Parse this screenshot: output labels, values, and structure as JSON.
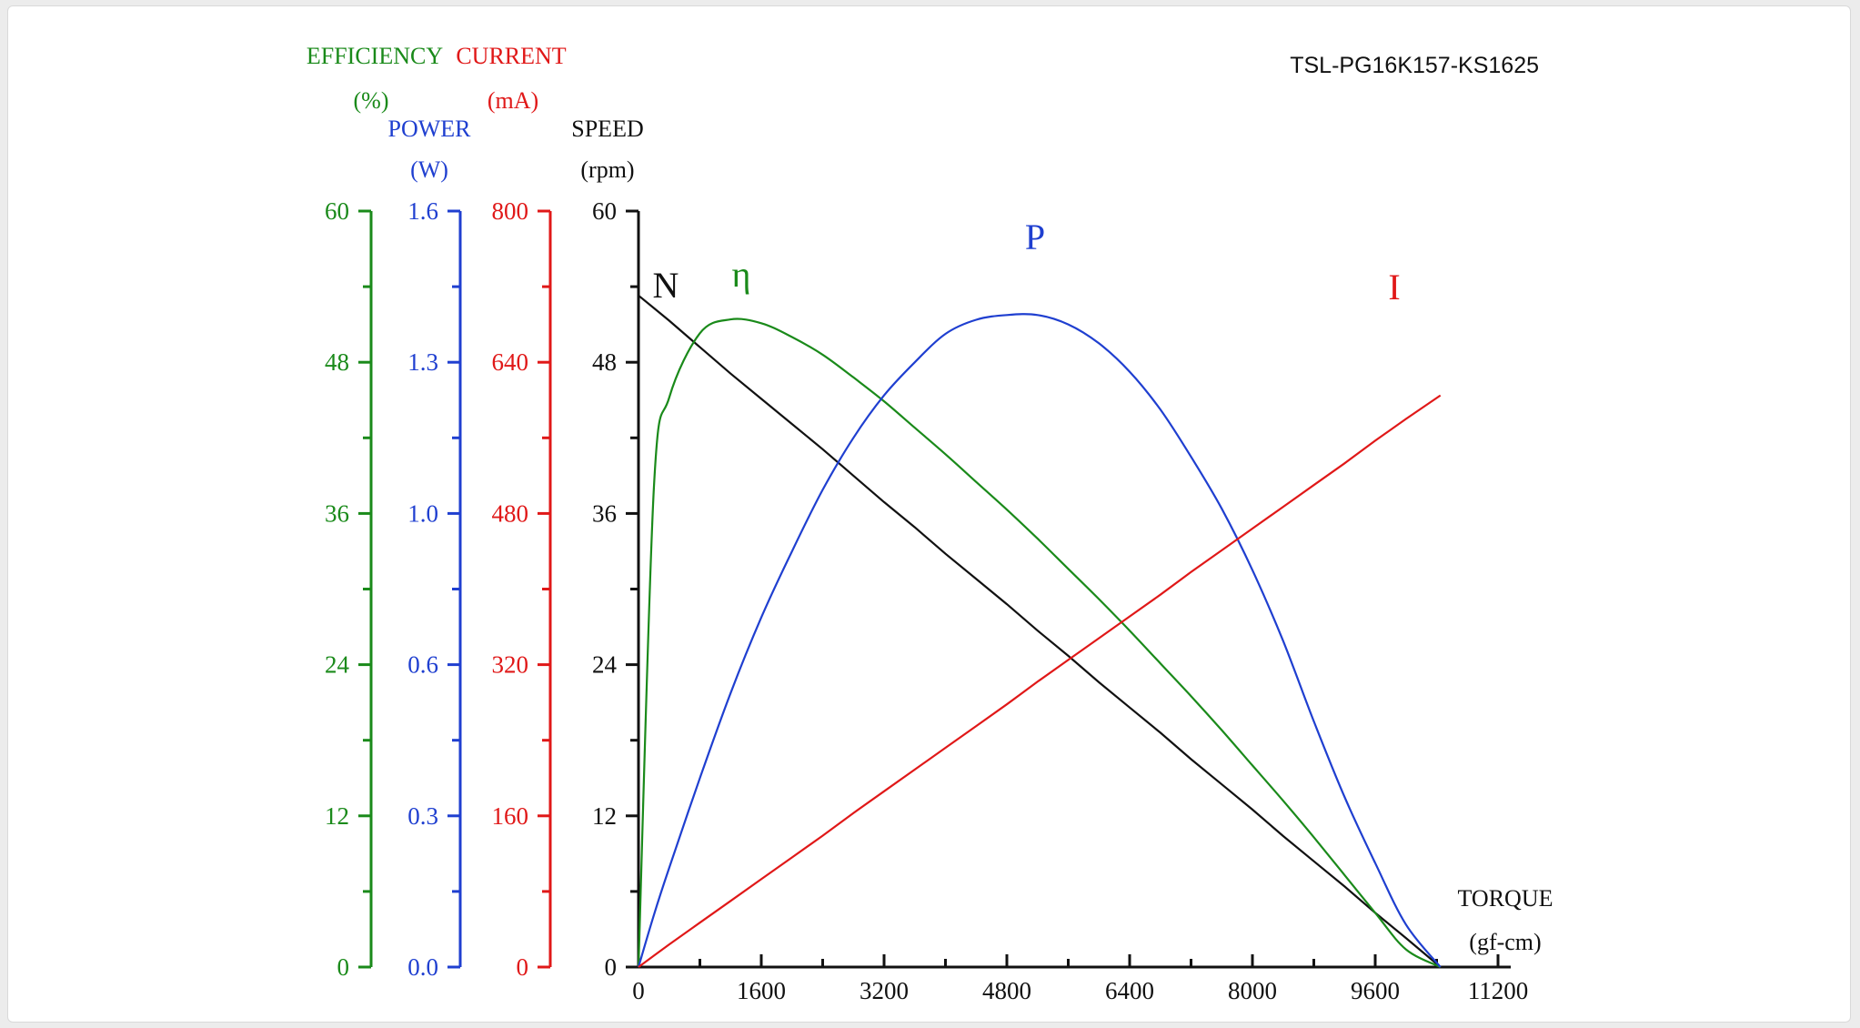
{
  "model": "TSL-PG16K157-KS1625",
  "colors": {
    "efficiency": "#1a8a1a",
    "power": "#1f3fd0",
    "current": "#e01818",
    "speed": "#111111"
  },
  "axes": {
    "efficiency": {
      "title": "EFFICIENCY",
      "unit": "(%)",
      "ticks": [
        "0",
        "12",
        "24",
        "36",
        "48",
        "60"
      ],
      "range": [
        0,
        60
      ]
    },
    "power": {
      "title": "POWER",
      "unit": "(W)",
      "ticks": [
        "0.0",
        "0.3",
        "0.6",
        "1.0",
        "1.3",
        "1.6"
      ],
      "range": [
        0,
        1.6
      ]
    },
    "current": {
      "title": "CURRENT",
      "unit": "(mA)",
      "ticks": [
        "0",
        "160",
        "320",
        "480",
        "640",
        "800"
      ],
      "range": [
        0,
        800
      ]
    },
    "speed": {
      "title": "SPEED",
      "unit": "(rpm)",
      "ticks": [
        "0",
        "12",
        "24",
        "36",
        "48",
        "60"
      ],
      "range": [
        0,
        60
      ]
    },
    "torque": {
      "title": "TORQUE",
      "unit": "(gf-cm)",
      "ticks": [
        "0",
        "1600",
        "3200",
        "4800",
        "6400",
        "8000",
        "9600",
        "11200"
      ],
      "range": [
        0,
        11200
      ]
    }
  },
  "chart_data": {
    "type": "line",
    "title": "TSL-PG16K157-KS1625",
    "xlabel": "TORQUE (gf-cm)",
    "xlim": [
      0,
      11200
    ],
    "x": [
      0,
      200,
      400,
      800,
      1200,
      1600,
      2000,
      2400,
      2800,
      3200,
      3600,
      4000,
      4400,
      4800,
      5200,
      5600,
      6000,
      6400,
      6800,
      7200,
      7600,
      8000,
      8400,
      8800,
      9200,
      9600,
      10000,
      10450
    ],
    "series": [
      {
        "name": "N",
        "axis": "SPEED (rpm)",
        "ylim": [
          0,
          60
        ],
        "values": [
          53.3,
          52.3,
          51.3,
          49.2,
          47.1,
          45.1,
          43.1,
          41.1,
          39.0,
          36.9,
          34.9,
          32.8,
          30.8,
          28.8,
          26.7,
          24.7,
          22.6,
          20.6,
          18.6,
          16.5,
          14.5,
          12.5,
          10.4,
          8.4,
          6.4,
          4.3,
          2.3,
          0
        ]
      },
      {
        "name": "η",
        "axis": "EFFICIENCY (%)",
        "ylim": [
          0,
          60
        ],
        "values": [
          0,
          38.0,
          45.2,
          50.3,
          51.4,
          51.1,
          50.0,
          48.6,
          46.8,
          44.9,
          42.8,
          40.7,
          38.5,
          36.3,
          34.0,
          31.6,
          29.2,
          26.7,
          24.1,
          21.5,
          18.8,
          16.0,
          13.2,
          10.3,
          7.3,
          4.3,
          1.4,
          0
        ]
      },
      {
        "name": "P",
        "axis": "POWER (W)",
        "ylim": [
          0,
          1.6
        ],
        "values": [
          0,
          0.11,
          0.21,
          0.4,
          0.58,
          0.74,
          0.88,
          1.01,
          1.12,
          1.21,
          1.28,
          1.34,
          1.37,
          1.38,
          1.38,
          1.36,
          1.32,
          1.26,
          1.18,
          1.08,
          0.97,
          0.84,
          0.69,
          0.52,
          0.36,
          0.22,
          0.09,
          0
        ]
      },
      {
        "name": "I",
        "axis": "CURRENT (mA)",
        "ylim": [
          0,
          800
        ],
        "values": [
          0,
          12,
          24,
          47,
          70,
          93,
          116,
          139,
          163,
          186,
          209,
          232,
          255,
          278,
          302,
          325,
          348,
          371,
          394,
          418,
          441,
          464,
          487,
          510,
          533,
          557,
          580,
          605
        ]
      }
    ]
  }
}
